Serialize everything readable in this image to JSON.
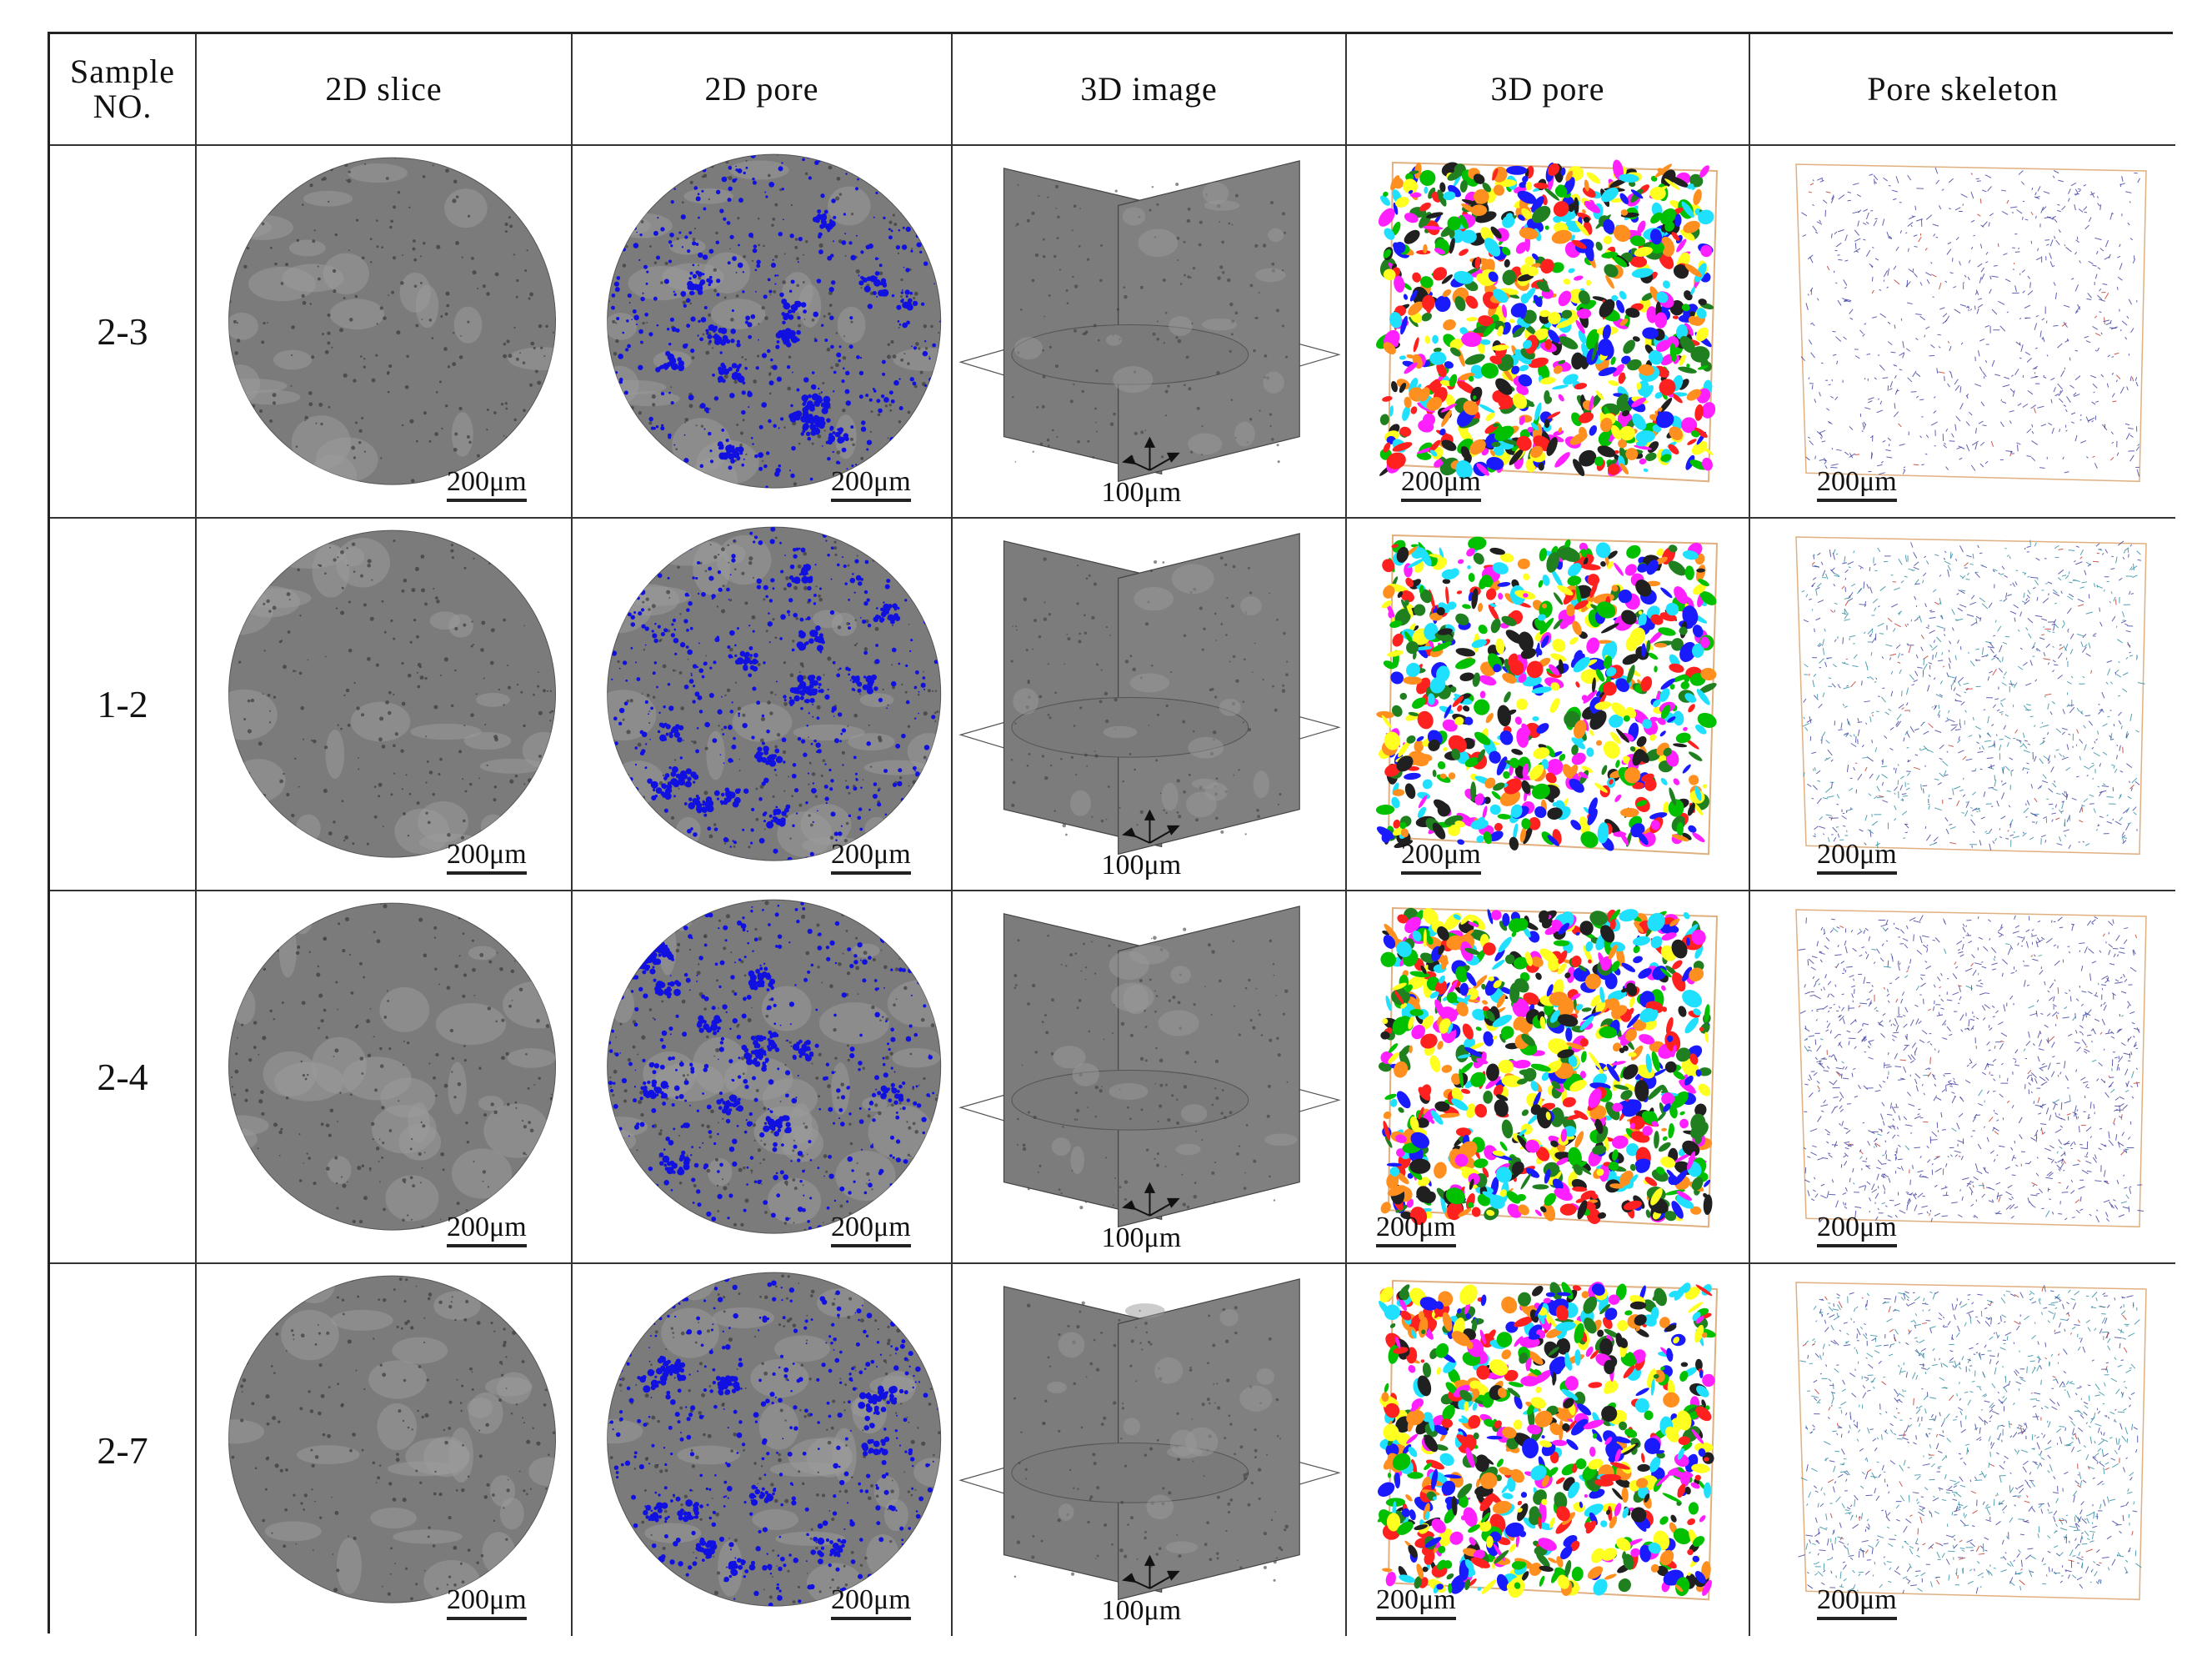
{
  "headers": [
    "Sample NO.",
    "2D slice",
    "2D pore",
    "3D image",
    "3D pore",
    "Pore skeleton"
  ],
  "header_sample_line1": "Sample",
  "header_sample_line2": "NO.",
  "rows": [
    {
      "sample": "2-3",
      "scale_2d_slice": "200μm",
      "scale_2d_pore": "200μm",
      "scale_3d_image": "100μm",
      "scale_3d_pore": "200μm",
      "scale_skeleton": "200μm"
    },
    {
      "sample": "1-2",
      "scale_2d_slice": "200μm",
      "scale_2d_pore": "200μm",
      "scale_3d_image": "100μm",
      "scale_3d_pore": "200μm",
      "scale_skeleton": "200μm"
    },
    {
      "sample": "2-4",
      "scale_2d_slice": "200μm",
      "scale_2d_pore": "200μm",
      "scale_3d_image": "100μm",
      "scale_3d_pore": "200μm",
      "scale_skeleton": "200μm"
    },
    {
      "sample": "2-7",
      "scale_2d_slice": "200μm",
      "scale_2d_pore": "200μm",
      "scale_3d_image": "100μm",
      "scale_3d_pore": "200μm",
      "scale_skeleton": "200μm"
    }
  ],
  "colors": {
    "slice_gray": "#7b7b7b",
    "slice_light": "#9a9a9a",
    "pore_blue": "#1010e0",
    "pore_palette": [
      "#1a1aff",
      "#00c000",
      "#ff2020",
      "#ffff20",
      "#ff20ff",
      "#20e0ff",
      "#ff9020",
      "#208020",
      "#202020"
    ],
    "skeleton_blue": "#3a3aa0",
    "skeleton_accent": "#c03020",
    "box_edge": "#e0b080"
  }
}
